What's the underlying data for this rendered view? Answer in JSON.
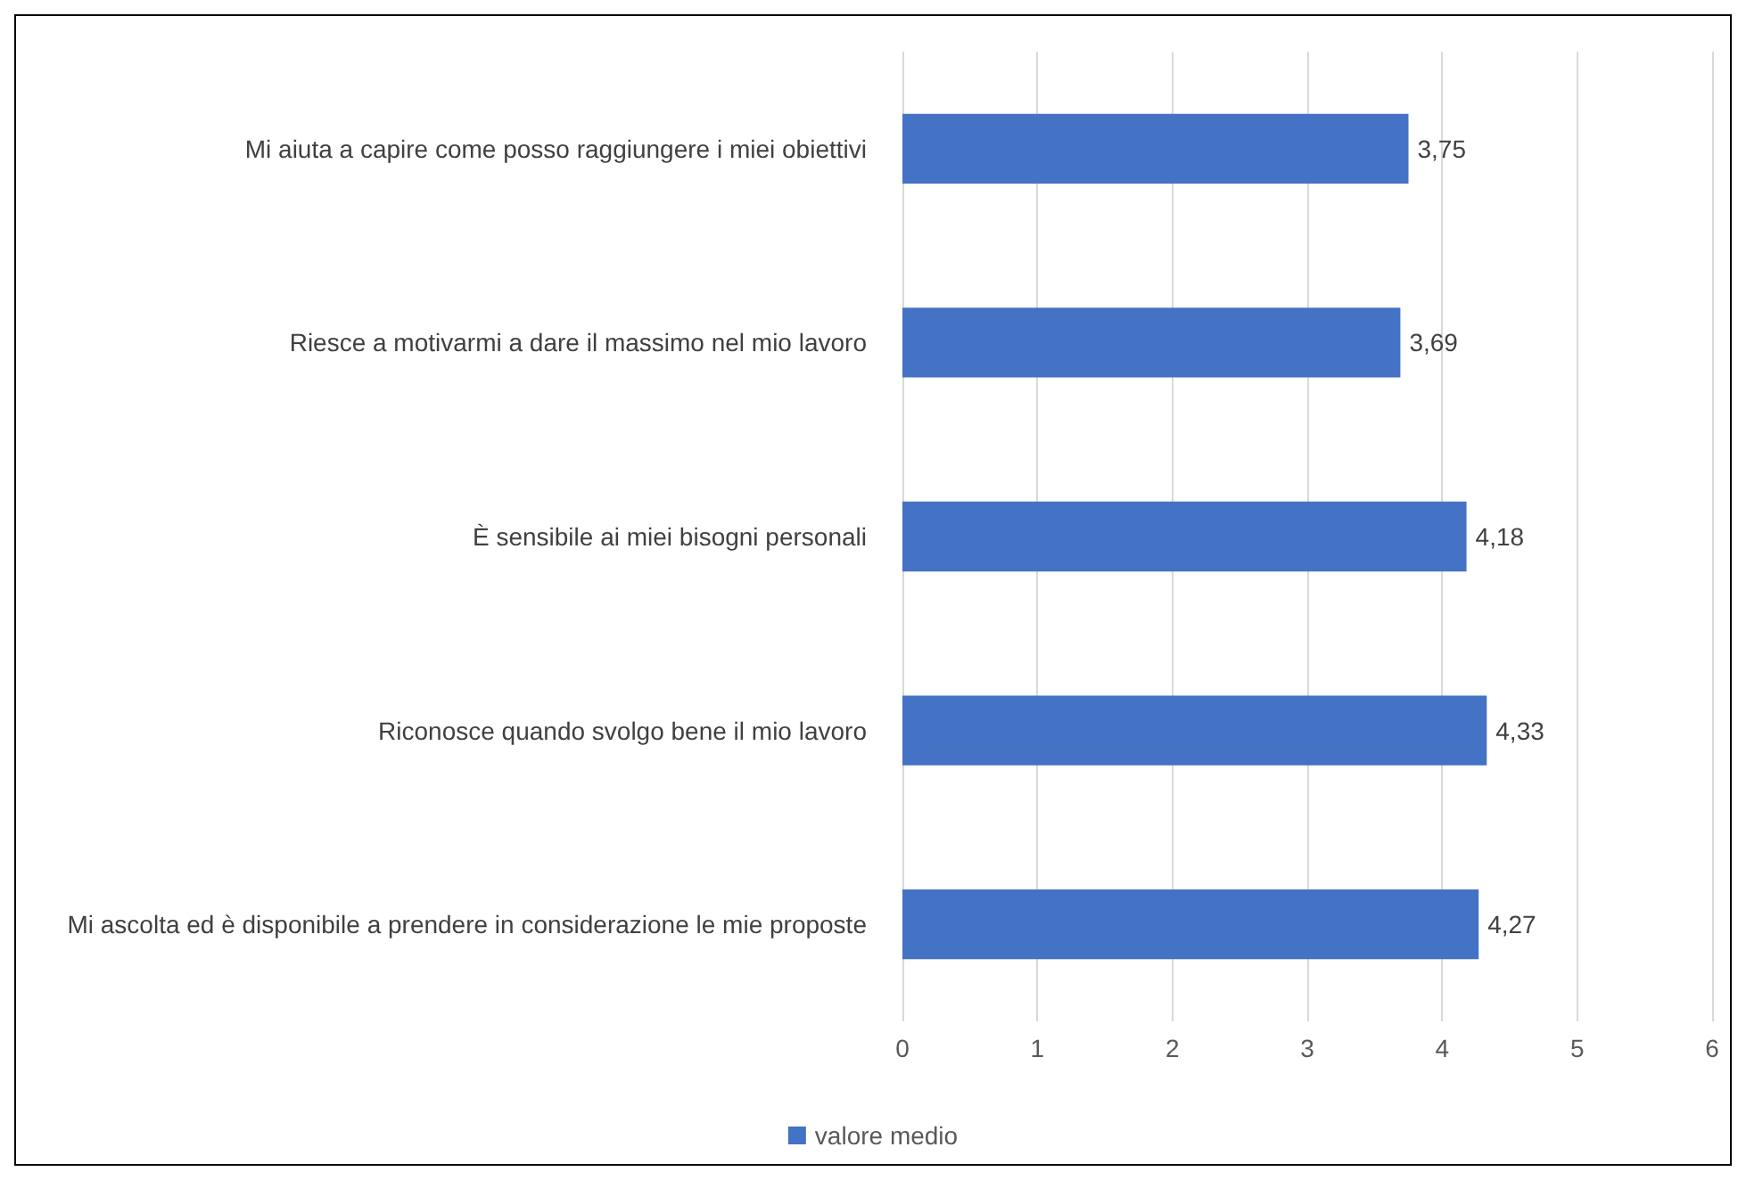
{
  "chart_data": {
    "type": "bar",
    "orientation": "horizontal",
    "categories": [
      "Mi aiuta a capire come posso raggiungere i miei obiettivi",
      "Riesce a motivarmi a dare il massimo nel mio lavoro",
      "È sensibile ai miei bisogni personali",
      "Riconosce quando svolgo bene il mio lavoro",
      "Mi ascolta ed è disponibile a prendere in considerazione le mie proposte"
    ],
    "series": [
      {
        "name": "valore medio",
        "color": "#4472c4",
        "values": [
          3.75,
          3.69,
          4.18,
          4.33,
          4.27
        ],
        "value_labels": [
          "3,75",
          "3,69",
          "4,18",
          "4,33",
          "4,27"
        ]
      }
    ],
    "xlim": [
      0,
      6
    ],
    "xticks": [
      0,
      1,
      2,
      3,
      4,
      5,
      6
    ],
    "grid": "x",
    "legend": "bottom"
  }
}
